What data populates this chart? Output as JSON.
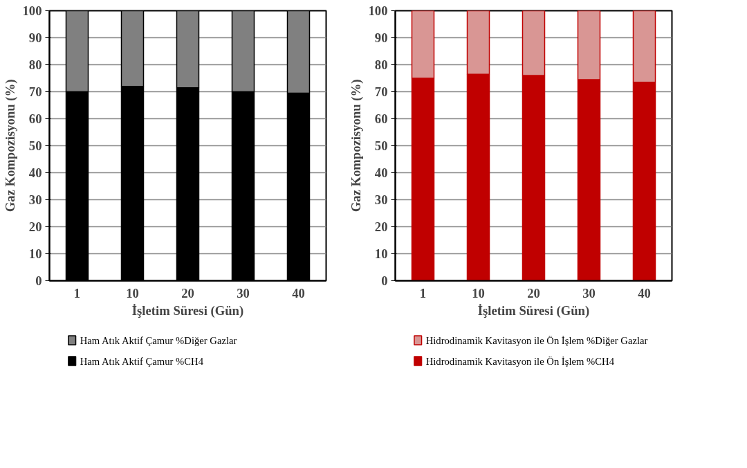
{
  "chart_data": [
    {
      "type": "bar",
      "stacked": true,
      "categories": [
        "1",
        "10",
        "20",
        "30",
        "40"
      ],
      "xlabel": "İşletim Süresi (Gün)",
      "ylabel": "Gaz Kompozisyonu (%)",
      "ylim": [
        0,
        100
      ],
      "yticks": [
        0,
        10,
        20,
        30,
        40,
        50,
        60,
        70,
        80,
        90,
        100
      ],
      "grid": "y",
      "legend": "bottom",
      "series": [
        {
          "name": "Ham Atık Aktif Çamur %CH4",
          "color": "#000000",
          "values": [
            70,
            72,
            71.5,
            70,
            69.5
          ]
        },
        {
          "name": "Ham Atık Aktif Çamur %Diğer Gazlar",
          "color": "#808080",
          "values": [
            30,
            28,
            28.5,
            30,
            30.5
          ]
        }
      ]
    },
    {
      "type": "bar",
      "stacked": true,
      "categories": [
        "1",
        "10",
        "20",
        "30",
        "40"
      ],
      "xlabel": "İşletim Süresi (Gün)",
      "ylabel": "Gaz Kompozisyonu (%)",
      "ylim": [
        0,
        100
      ],
      "yticks": [
        0,
        10,
        20,
        30,
        40,
        50,
        60,
        70,
        80,
        90,
        100
      ],
      "grid": "y",
      "legend": "bottom",
      "series": [
        {
          "name": "Hidrodinamik Kavitasyon ile Ön İşlem %CH4",
          "color": "#c00000",
          "values": [
            75,
            76.5,
            76,
            74.5,
            73.5
          ]
        },
        {
          "name": "Hidrodinamik Kavitasyon ile Ön İşlem %Diğer Gazlar",
          "color": "#d99694",
          "values": [
            25,
            23.5,
            24,
            25.5,
            26.5
          ]
        }
      ]
    }
  ]
}
